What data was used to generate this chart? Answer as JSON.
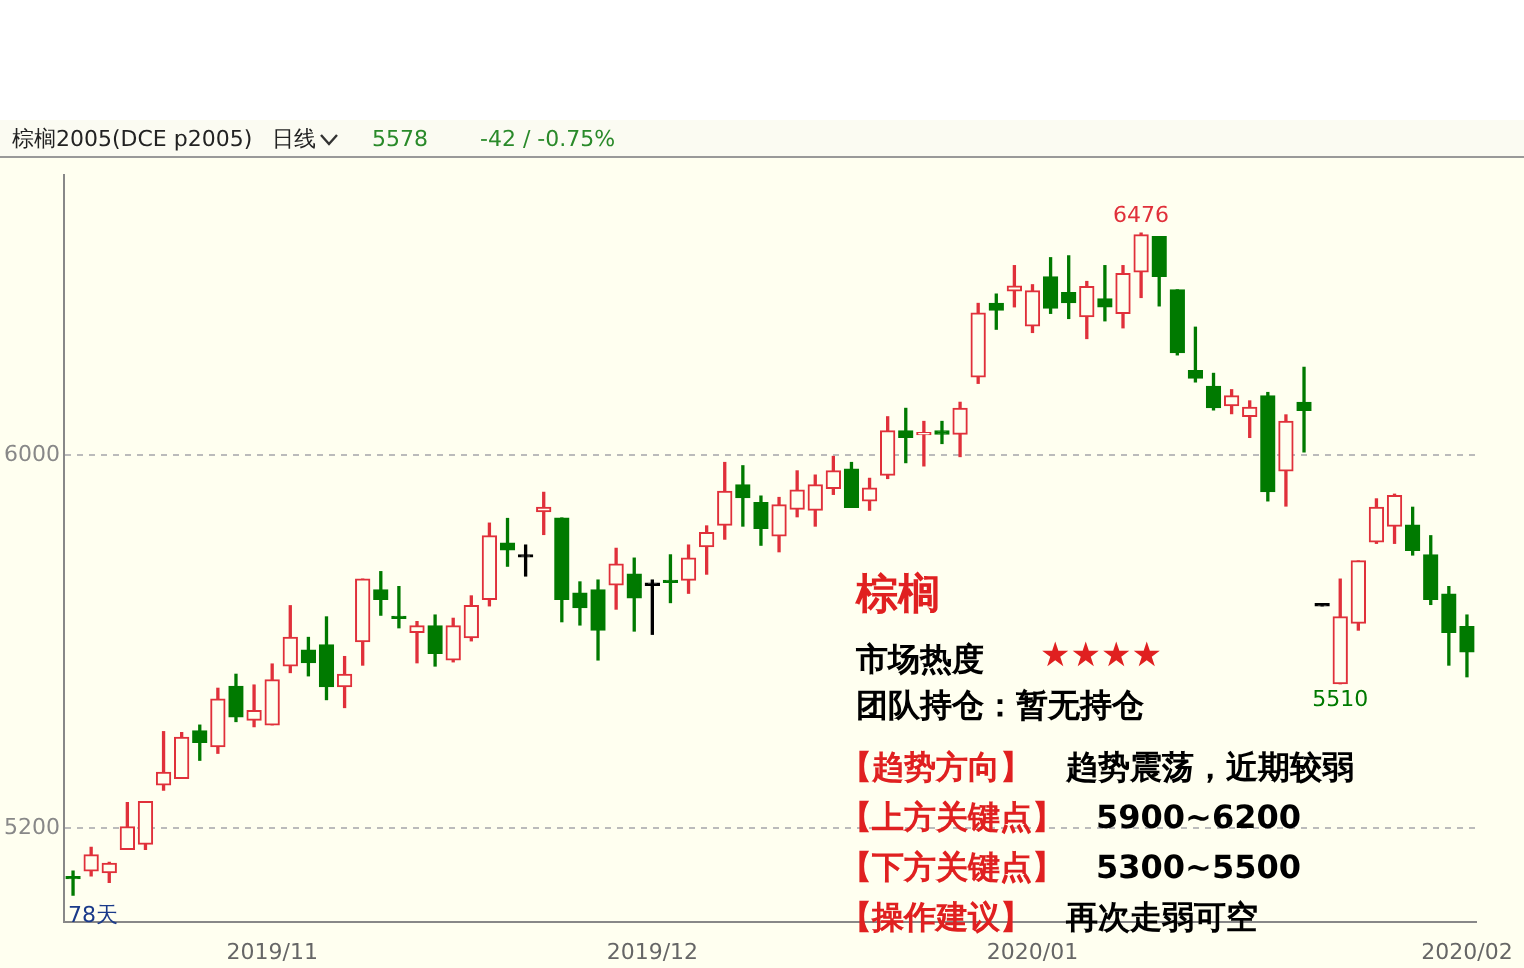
{
  "chart_data": {
    "type": "candlestick",
    "categories": [
      null,
      null,
      null,
      null,
      null,
      null,
      null,
      null,
      null,
      null,
      null,
      "2019/11",
      null,
      null,
      null,
      null,
      null,
      null,
      null,
      null,
      null,
      null,
      null,
      null,
      null,
      null,
      null,
      null,
      null,
      null,
      null,
      null,
      "2019/12",
      null,
      null,
      null,
      null,
      null,
      null,
      null,
      null,
      null,
      null,
      null,
      null,
      null,
      null,
      null,
      null,
      null,
      null,
      null,
      null,
      "2020/01",
      null,
      null,
      null,
      null,
      null,
      null,
      null,
      null,
      null,
      null,
      null,
      null,
      null,
      null,
      null,
      null,
      null,
      null,
      null,
      null,
      null,
      null,
      null,
      "2020/02"
    ],
    "ohlc": [
      [
        5096,
        5108,
        5057,
        5092
      ],
      [
        5109,
        5159,
        5098,
        5143
      ],
      [
        5105,
        5127,
        5084,
        5125
      ],
      [
        5155,
        5255,
        5155,
        5203
      ],
      [
        5166,
        5257,
        5155,
        5257
      ],
      [
        5293,
        5407,
        5282,
        5320
      ],
      [
        5307,
        5405,
        5307,
        5395
      ],
      [
        5409,
        5421,
        5346,
        5384
      ],
      [
        5375,
        5500,
        5361,
        5477
      ],
      [
        5504,
        5530,
        5429,
        5439
      ],
      [
        5432,
        5507,
        5418,
        5452
      ],
      [
        5422,
        5552,
        5422,
        5518
      ],
      [
        5548,
        5677,
        5534,
        5609
      ],
      [
        5582,
        5609,
        5527,
        5555
      ],
      [
        5593,
        5653,
        5476,
        5504
      ],
      [
        5504,
        5568,
        5459,
        5530
      ],
      [
        5600,
        5734,
        5550,
        5734
      ],
      [
        5711,
        5750,
        5657,
        5691
      ],
      [
        5653,
        5718,
        5630,
        5650
      ],
      [
        5620,
        5643,
        5555,
        5634
      ],
      [
        5634,
        5657,
        5548,
        5575
      ],
      [
        5561,
        5650,
        5557,
        5634
      ],
      [
        5609,
        5698,
        5602,
        5677
      ],
      [
        5691,
        5854,
        5677,
        5827
      ],
      [
        5811,
        5864,
        5762,
        5797
      ],
      [
        5782,
        5807,
        5741,
        5782
      ],
      [
        5879,
        5920,
        5830,
        5888
      ],
      [
        5865,
        5865,
        5643,
        5691
      ],
      [
        5704,
        5728,
        5636,
        5673
      ],
      [
        5711,
        5732,
        5561,
        5625
      ],
      [
        5722,
        5800,
        5670,
        5766
      ],
      [
        5745,
        5779,
        5623,
        5694
      ],
      [
        5721,
        5732,
        5616,
        5721
      ],
      [
        5730,
        5786,
        5684,
        5727
      ],
      [
        5732,
        5807,
        5704,
        5779
      ],
      [
        5804,
        5848,
        5745,
        5834
      ],
      [
        5850,
        5984,
        5820,
        5922
      ],
      [
        5936,
        5977,
        5848,
        5909
      ],
      [
        5898,
        5912,
        5807,
        5843
      ],
      [
        5827,
        5909,
        5793,
        5893
      ],
      [
        5884,
        5966,
        5868,
        5925
      ],
      [
        5882,
        5957,
        5848,
        5936
      ],
      [
        5929,
        5997,
        5916,
        5966
      ],
      [
        5970,
        5984,
        5888,
        5888
      ],
      [
        5902,
        5950,
        5882,
        5929
      ],
      [
        5957,
        6082,
        5950,
        6052
      ],
      [
        6052,
        6100,
        5984,
        6038
      ],
      [
        6044,
        6072,
        5977,
        6048
      ],
      [
        6052,
        6072,
        6025,
        6045
      ],
      [
        6045,
        6113,
        5997,
        6100
      ],
      [
        6168,
        6325,
        6154,
        6304
      ],
      [
        6325,
        6345,
        6270,
        6311
      ],
      [
        6352,
        6406,
        6318,
        6362
      ],
      [
        6277,
        6365,
        6263,
        6352
      ],
      [
        6382,
        6423,
        6304,
        6315
      ],
      [
        6348,
        6427,
        6293,
        6327
      ],
      [
        6297,
        6372,
        6250,
        6361
      ],
      [
        6335,
        6406,
        6288,
        6318
      ],
      [
        6304,
        6406,
        6273,
        6389
      ],
      [
        6393,
        6476,
        6338,
        6472
      ],
      [
        6468,
        6468,
        6320,
        6383
      ],
      [
        6354,
        6354,
        6215,
        6220
      ],
      [
        6181,
        6274,
        6157,
        6165
      ],
      [
        6147,
        6175,
        6097,
        6102
      ],
      [
        6106,
        6140,
        6089,
        6127
      ],
      [
        6083,
        6116,
        6038,
        6102
      ],
      [
        6127,
        6134,
        5902,
        5922
      ],
      [
        5966,
        6086,
        5891,
        6072
      ],
      [
        6113,
        6188,
        6007,
        6096
      ],
      [
        5677,
        5677,
        5677,
        5677
      ],
      [
        5510,
        5734,
        5510,
        5653
      ],
      [
        5640,
        5773,
        5625,
        5773
      ],
      [
        5814,
        5906,
        5811,
        5888
      ],
      [
        5848,
        5916,
        5811,
        5913
      ],
      [
        5850,
        5888,
        5786,
        5796
      ],
      [
        5786,
        5827,
        5680,
        5691
      ],
      [
        5702,
        5718,
        5550,
        5620
      ],
      [
        5632,
        5657,
        5525,
        5578
      ]
    ],
    "ylim": [
      5000,
      6600
    ],
    "yticks": [
      5200,
      6000
    ],
    "grid": "y",
    "legend": false,
    "annotations": [
      "棕榈2005(DCE p2005)",
      "日线",
      "5578",
      "-42 / -0.75%",
      "78天",
      {
        "text": "6476",
        "y": 6476
      },
      {
        "text": "5510",
        "y": 5510
      },
      "棕榈",
      "市场热度",
      "★★★★",
      "团队持仓：暂无持仓",
      "【趋势方向】",
      "趋势震荡，近期较弱",
      "【上方关键点】",
      "5900~6200",
      "【下方关键点】",
      "5300~5500",
      "【操作建议】",
      "再次走弱可空"
    ]
  }
}
